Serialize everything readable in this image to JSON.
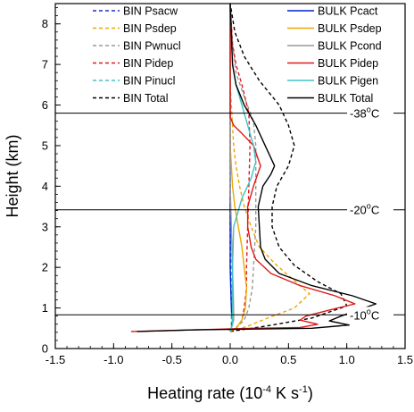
{
  "chart_data": {
    "type": "line",
    "title": "",
    "xlabel": "Heating rate (10",
    "xlabel_exp": "-4",
    "xlabel_mid": " K s",
    "xlabel_exp2": "-1",
    "xlabel_end": ")",
    "ylabel": "Height (km)",
    "xlim": [
      -1.5,
      1.5
    ],
    "ylim": [
      0,
      8.5
    ],
    "xticks": [
      -1.5,
      -1.0,
      -0.5,
      0.0,
      0.5,
      1.0,
      1.5
    ],
    "xtick_labels": [
      "-1.5",
      "-1.0",
      "-0.5",
      "0.0",
      "0.5",
      "1.0",
      "1.5"
    ],
    "yticks": [
      0,
      1,
      2,
      3,
      4,
      5,
      6,
      7,
      8
    ],
    "ytick_labels": [
      "0",
      "1",
      "2",
      "3",
      "4",
      "5",
      "6",
      "7",
      "8"
    ],
    "legend_placement": "top",
    "reference_lines": [
      {
        "y": 5.8,
        "label": "-38",
        "unit": "C"
      },
      {
        "y": 3.42,
        "label": "-20",
        "unit": "C"
      },
      {
        "y": 0.83,
        "label": "-10",
        "unit": "C"
      }
    ],
    "series": [
      {
        "name": "BIN Psacw",
        "color": "#1f2fbf",
        "dash": true,
        "column": 0,
        "points": [
          [
            0,
            0.42
          ],
          [
            0.01,
            0.5
          ],
          [
            0.015,
            0.7
          ],
          [
            0.01,
            1
          ],
          [
            0.005,
            2
          ],
          [
            0,
            3
          ],
          [
            0,
            5
          ],
          [
            0,
            6
          ],
          [
            0,
            7
          ],
          [
            0,
            8.5
          ]
        ]
      },
      {
        "name": "BIN Psdep",
        "color": "#f0a500",
        "dash": true,
        "column": 0,
        "points": [
          [
            0,
            0.42
          ],
          [
            0.15,
            0.55
          ],
          [
            0.32,
            0.75
          ],
          [
            0.55,
            1.0
          ],
          [
            0.68,
            1.35
          ],
          [
            0.52,
            1.75
          ],
          [
            0.38,
            2.1
          ],
          [
            0.25,
            2.5
          ],
          [
            0.18,
            3
          ],
          [
            0.12,
            3.5
          ],
          [
            0.08,
            4
          ],
          [
            0.05,
            4.5
          ],
          [
            0.03,
            5
          ],
          [
            0.02,
            5.5
          ],
          [
            0.01,
            6
          ],
          [
            0,
            6.5
          ],
          [
            0,
            7
          ],
          [
            0,
            8.5
          ]
        ]
      },
      {
        "name": "BIN Pwnucl",
        "color": "#999999",
        "dash": true,
        "column": 0,
        "points": [
          [
            0,
            0.42
          ],
          [
            0.05,
            0.5
          ],
          [
            0.12,
            0.7
          ],
          [
            0.16,
            1.0
          ],
          [
            0.19,
            1.5
          ],
          [
            0.2,
            2
          ],
          [
            0.22,
            3
          ],
          [
            0.22,
            4
          ],
          [
            0.22,
            5
          ],
          [
            0.2,
            5.6
          ],
          [
            0.12,
            6.2
          ],
          [
            0.05,
            6.8
          ],
          [
            0.02,
            7.5
          ],
          [
            0,
            8.5
          ]
        ]
      },
      {
        "name": "BIN Pidep",
        "color": "#e01818",
        "dash": true,
        "column": 0,
        "points": [
          [
            0,
            0.42
          ],
          [
            0.05,
            0.5
          ],
          [
            0.1,
            0.7
          ],
          [
            0.12,
            1
          ],
          [
            0.14,
            1.5
          ],
          [
            0.14,
            2
          ],
          [
            0.15,
            3
          ],
          [
            0.16,
            4
          ],
          [
            0.17,
            5
          ],
          [
            0.16,
            5.8
          ],
          [
            0.1,
            6.5
          ],
          [
            0.05,
            7
          ],
          [
            0.02,
            7.5
          ],
          [
            0,
            8.5
          ]
        ]
      },
      {
        "name": "BIN Pinucl",
        "color": "#40c0c8",
        "dash": true,
        "column": 0,
        "points": [
          [
            0,
            0.42
          ],
          [
            0.01,
            0.6
          ],
          [
            0.01,
            1
          ],
          [
            0,
            2
          ],
          [
            0,
            4
          ],
          [
            0,
            6
          ],
          [
            0,
            8.5
          ]
        ]
      },
      {
        "name": "BIN Total",
        "color": "#000000",
        "dash": true,
        "column": 0,
        "points": [
          [
            0,
            0.42
          ],
          [
            0.3,
            0.55
          ],
          [
            0.7,
            0.75
          ],
          [
            1.0,
            1.05
          ],
          [
            0.95,
            1.35
          ],
          [
            0.75,
            1.65
          ],
          [
            0.55,
            2.05
          ],
          [
            0.42,
            2.5
          ],
          [
            0.36,
            3
          ],
          [
            0.36,
            3.5
          ],
          [
            0.4,
            4
          ],
          [
            0.5,
            4.5
          ],
          [
            0.55,
            5
          ],
          [
            0.5,
            5.5
          ],
          [
            0.42,
            6
          ],
          [
            0.25,
            6.6
          ],
          [
            0.12,
            7.2
          ],
          [
            0.04,
            7.8
          ],
          [
            0,
            8.5
          ]
        ]
      },
      {
        "name": "BULK Pcact",
        "color": "#0020d0",
        "dash": false,
        "column": 1,
        "points": [
          [
            0,
            0.42
          ],
          [
            0.01,
            0.5
          ],
          [
            0.02,
            0.7
          ],
          [
            0.01,
            1
          ],
          [
            0,
            2
          ],
          [
            0,
            4
          ],
          [
            0,
            6
          ],
          [
            0,
            8.5
          ]
        ]
      },
      {
        "name": "BULK Psdep",
        "color": "#f0a500",
        "dash": false,
        "column": 1,
        "points": [
          [
            0,
            0.42
          ],
          [
            0.05,
            0.5
          ],
          [
            0.1,
            0.7
          ],
          [
            0.13,
            1
          ],
          [
            0.14,
            1.5
          ],
          [
            0.12,
            2
          ],
          [
            0.1,
            2.5
          ],
          [
            0.07,
            3
          ],
          [
            0.04,
            3.5
          ],
          [
            0.02,
            4
          ],
          [
            0.01,
            4.5
          ],
          [
            0,
            5
          ],
          [
            0,
            8.5
          ]
        ]
      },
      {
        "name": "BULK Pcond",
        "color": "#999999",
        "dash": false,
        "column": 1,
        "points": [
          [
            0,
            0.42
          ],
          [
            0.01,
            0.5
          ],
          [
            0.03,
            0.7
          ],
          [
            0.03,
            1
          ],
          [
            0.02,
            2
          ],
          [
            0.01,
            3
          ],
          [
            0,
            4
          ],
          [
            0,
            8.5
          ]
        ]
      },
      {
        "name": "BULK Pidep",
        "color": "#e01818",
        "dash": false,
        "column": 1,
        "points": [
          [
            -0.85,
            0.42
          ],
          [
            -0.3,
            0.46
          ],
          [
            0.2,
            0.5
          ],
          [
            0.6,
            0.52
          ],
          [
            0.75,
            0.6
          ],
          [
            0.6,
            0.7
          ],
          [
            0.65,
            0.8
          ],
          [
            0.85,
            0.95
          ],
          [
            1.07,
            1.1
          ],
          [
            0.9,
            1.3
          ],
          [
            0.6,
            1.55
          ],
          [
            0.35,
            1.85
          ],
          [
            0.22,
            2.2
          ],
          [
            0.18,
            2.5
          ],
          [
            0.15,
            3
          ],
          [
            0.15,
            3.5
          ],
          [
            0.2,
            4
          ],
          [
            0.26,
            4.5
          ],
          [
            0.2,
            5
          ],
          [
            0.1,
            5.3
          ],
          [
            0.03,
            5.5
          ],
          [
            0,
            5.7
          ],
          [
            0,
            8.5
          ]
        ]
      },
      {
        "name": "BULK Pigen",
        "color": "#40c0c8",
        "dash": false,
        "column": 1,
        "points": [
          [
            0,
            0.42
          ],
          [
            0.02,
            0.6
          ],
          [
            0.02,
            1
          ],
          [
            0.02,
            2
          ],
          [
            0.03,
            3
          ],
          [
            0.1,
            3.7
          ],
          [
            0.18,
            4.2
          ],
          [
            0.22,
            4.6
          ],
          [
            0.2,
            5
          ],
          [
            0.15,
            5.5
          ],
          [
            0.1,
            6
          ],
          [
            0.05,
            6.5
          ],
          [
            0.02,
            7
          ],
          [
            0,
            8.5
          ]
        ]
      },
      {
        "name": "BULK Total",
        "color": "#000000",
        "dash": false,
        "column": 1,
        "points": [
          [
            -0.8,
            0.42
          ],
          [
            -0.3,
            0.46
          ],
          [
            0.2,
            0.48
          ],
          [
            0.7,
            0.5
          ],
          [
            1.02,
            0.58
          ],
          [
            0.85,
            0.68
          ],
          [
            0.95,
            0.8
          ],
          [
            1.1,
            0.95
          ],
          [
            1.25,
            1.1
          ],
          [
            1.05,
            1.3
          ],
          [
            0.7,
            1.55
          ],
          [
            0.42,
            1.85
          ],
          [
            0.3,
            2.2
          ],
          [
            0.26,
            2.5
          ],
          [
            0.25,
            3
          ],
          [
            0.24,
            3.5
          ],
          [
            0.28,
            4
          ],
          [
            0.35,
            4.3
          ],
          [
            0.38,
            4.5
          ],
          [
            0.3,
            5
          ],
          [
            0.22,
            5.5
          ],
          [
            0.12,
            6
          ],
          [
            0.05,
            6.5
          ],
          [
            0.02,
            7
          ],
          [
            0,
            8.5
          ]
        ]
      }
    ]
  }
}
